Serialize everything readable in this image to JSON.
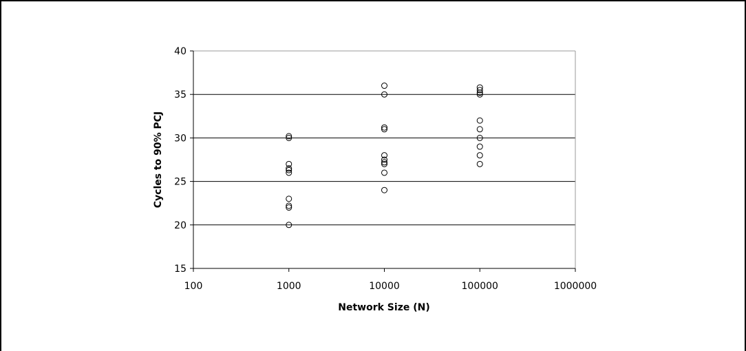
{
  "chart_data": {
    "type": "scatter",
    "title": "",
    "xlabel": "Network Size (N)",
    "ylabel": "Cycles to 90% PCJ",
    "x_scale": "log",
    "xlim": [
      100,
      1000000
    ],
    "ylim": [
      15,
      40
    ],
    "x_ticks": [
      "100",
      "1000",
      "10000",
      "100000",
      "1000000"
    ],
    "y_ticks": [
      "15",
      "20",
      "25",
      "30",
      "35",
      "40"
    ],
    "grid": "horizontal major gridlines",
    "legend": "none",
    "marker": "hollow circle",
    "series": [
      {
        "points": [
          {
            "x": 1000,
            "y": 30.2
          },
          {
            "x": 1000,
            "y": 30.0
          },
          {
            "x": 1000,
            "y": 27.0
          },
          {
            "x": 1000,
            "y": 26.5
          },
          {
            "x": 1000,
            "y": 26.3
          },
          {
            "x": 1000,
            "y": 26.0
          },
          {
            "x": 1000,
            "y": 23.0
          },
          {
            "x": 1000,
            "y": 22.2
          },
          {
            "x": 1000,
            "y": 22.0
          },
          {
            "x": 1000,
            "y": 20.0
          },
          {
            "x": 10000,
            "y": 36.0
          },
          {
            "x": 10000,
            "y": 35.0
          },
          {
            "x": 10000,
            "y": 31.2
          },
          {
            "x": 10000,
            "y": 31.0
          },
          {
            "x": 10000,
            "y": 28.0
          },
          {
            "x": 10000,
            "y": 27.5
          },
          {
            "x": 10000,
            "y": 27.2
          },
          {
            "x": 10000,
            "y": 27.0
          },
          {
            "x": 10000,
            "y": 26.0
          },
          {
            "x": 10000,
            "y": 24.0
          },
          {
            "x": 100000,
            "y": 35.8
          },
          {
            "x": 100000,
            "y": 35.5
          },
          {
            "x": 100000,
            "y": 35.2
          },
          {
            "x": 100000,
            "y": 35.0
          },
          {
            "x": 100000,
            "y": 32.0
          },
          {
            "x": 100000,
            "y": 31.0
          },
          {
            "x": 100000,
            "y": 30.0
          },
          {
            "x": 100000,
            "y": 29.0
          },
          {
            "x": 100000,
            "y": 28.0
          },
          {
            "x": 100000,
            "y": 27.0
          }
        ]
      }
    ]
  }
}
